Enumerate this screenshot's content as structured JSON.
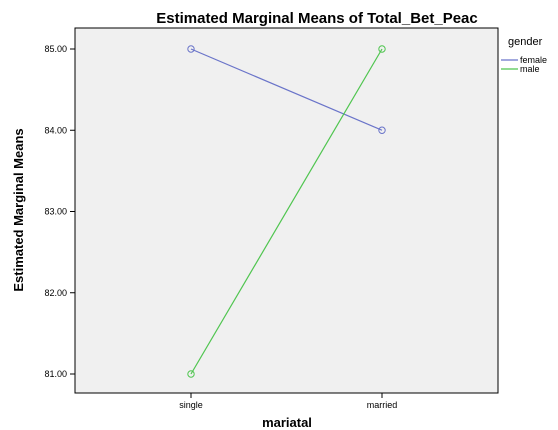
{
  "colors": {
    "plot_bg": "#f0f0f0",
    "female": "#6a74c9",
    "male": "#4fc54f"
  },
  "chart_data": {
    "type": "line",
    "title": "Estimated Marginal Means of Total_Bet_Peac",
    "xlabel": "mariatal",
    "ylabel": "Estimated Marginal Means",
    "categories": [
      "single",
      "married"
    ],
    "ylim": [
      81.0,
      85.0
    ],
    "yticks": [
      "81.00",
      "82.00",
      "83.00",
      "84.00",
      "85.00"
    ],
    "legend": {
      "title": "gender",
      "placement": "right"
    },
    "grid": false,
    "series": [
      {
        "name": "female",
        "values": [
          85.0,
          84.0
        ],
        "color": "#6a74c9"
      },
      {
        "name": "male",
        "values": [
          81.0,
          85.0
        ],
        "color": "#4fc54f"
      }
    ]
  }
}
